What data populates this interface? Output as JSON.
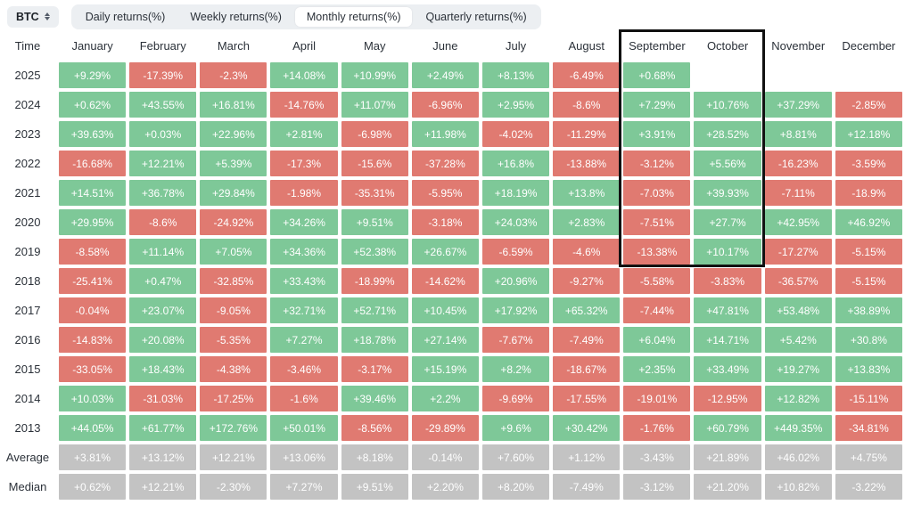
{
  "controls": {
    "symbol": {
      "label": "BTC"
    },
    "tabs": [
      {
        "label": "Daily returns(%)",
        "active": false
      },
      {
        "label": "Weekly returns(%)",
        "active": false
      },
      {
        "label": "Monthly returns(%)",
        "active": true
      },
      {
        "label": "Quarterly returns(%)",
        "active": false
      }
    ]
  },
  "table": {
    "columns": [
      "Time",
      "January",
      "February",
      "March",
      "April",
      "May",
      "June",
      "July",
      "August",
      "September",
      "October",
      "November",
      "December"
    ],
    "rows": [
      {
        "label": "2025",
        "type": "year",
        "cells": [
          "+9.29%",
          "-17.39%",
          "-2.3%",
          "+14.08%",
          "+10.99%",
          "+2.49%",
          "+8.13%",
          "-6.49%",
          "+0.68%",
          "",
          "",
          ""
        ]
      },
      {
        "label": "2024",
        "type": "year",
        "cells": [
          "+0.62%",
          "+43.55%",
          "+16.81%",
          "-14.76%",
          "+11.07%",
          "-6.96%",
          "+2.95%",
          "-8.6%",
          "+7.29%",
          "+10.76%",
          "+37.29%",
          "-2.85%"
        ]
      },
      {
        "label": "2023",
        "type": "year",
        "cells": [
          "+39.63%",
          "+0.03%",
          "+22.96%",
          "+2.81%",
          "-6.98%",
          "+11.98%",
          "-4.02%",
          "-11.29%",
          "+3.91%",
          "+28.52%",
          "+8.81%",
          "+12.18%"
        ]
      },
      {
        "label": "2022",
        "type": "year",
        "cells": [
          "-16.68%",
          "+12.21%",
          "+5.39%",
          "-17.3%",
          "-15.6%",
          "-37.28%",
          "+16.8%",
          "-13.88%",
          "-3.12%",
          "+5.56%",
          "-16.23%",
          "-3.59%"
        ]
      },
      {
        "label": "2021",
        "type": "year",
        "cells": [
          "+14.51%",
          "+36.78%",
          "+29.84%",
          "-1.98%",
          "-35.31%",
          "-5.95%",
          "+18.19%",
          "+13.8%",
          "-7.03%",
          "+39.93%",
          "-7.11%",
          "-18.9%"
        ]
      },
      {
        "label": "2020",
        "type": "year",
        "cells": [
          "+29.95%",
          "-8.6%",
          "-24.92%",
          "+34.26%",
          "+9.51%",
          "-3.18%",
          "+24.03%",
          "+2.83%",
          "-7.51%",
          "+27.7%",
          "+42.95%",
          "+46.92%"
        ]
      },
      {
        "label": "2019",
        "type": "year",
        "cells": [
          "-8.58%",
          "+11.14%",
          "+7.05%",
          "+34.36%",
          "+52.38%",
          "+26.67%",
          "-6.59%",
          "-4.6%",
          "-13.38%",
          "+10.17%",
          "-17.27%",
          "-5.15%"
        ]
      },
      {
        "label": "2018",
        "type": "year",
        "cells": [
          "-25.41%",
          "+0.47%",
          "-32.85%",
          "+33.43%",
          "-18.99%",
          "-14.62%",
          "+20.96%",
          "-9.27%",
          "-5.58%",
          "-3.83%",
          "-36.57%",
          "-5.15%"
        ]
      },
      {
        "label": "2017",
        "type": "year",
        "cells": [
          "-0.04%",
          "+23.07%",
          "-9.05%",
          "+32.71%",
          "+52.71%",
          "+10.45%",
          "+17.92%",
          "+65.32%",
          "-7.44%",
          "+47.81%",
          "+53.48%",
          "+38.89%"
        ]
      },
      {
        "label": "2016",
        "type": "year",
        "cells": [
          "-14.83%",
          "+20.08%",
          "-5.35%",
          "+7.27%",
          "+18.78%",
          "+27.14%",
          "-7.67%",
          "-7.49%",
          "+6.04%",
          "+14.71%",
          "+5.42%",
          "+30.8%"
        ]
      },
      {
        "label": "2015",
        "type": "year",
        "cells": [
          "-33.05%",
          "+18.43%",
          "-4.38%",
          "-3.46%",
          "-3.17%",
          "+15.19%",
          "+8.2%",
          "-18.67%",
          "+2.35%",
          "+33.49%",
          "+19.27%",
          "+13.83%"
        ]
      },
      {
        "label": "2014",
        "type": "year",
        "cells": [
          "+10.03%",
          "-31.03%",
          "-17.25%",
          "-1.6%",
          "+39.46%",
          "+2.2%",
          "-9.69%",
          "-17.55%",
          "-19.01%",
          "-12.95%",
          "+12.82%",
          "-15.11%"
        ]
      },
      {
        "label": "2013",
        "type": "year",
        "cells": [
          "+44.05%",
          "+61.77%",
          "+172.76%",
          "+50.01%",
          "-8.56%",
          "-29.89%",
          "+9.6%",
          "+30.42%",
          "-1.76%",
          "+60.79%",
          "+449.35%",
          "-34.81%"
        ]
      },
      {
        "label": "Average",
        "type": "summary",
        "cells": [
          "+3.81%",
          "+13.12%",
          "+12.21%",
          "+13.06%",
          "+8.18%",
          "-0.14%",
          "+7.60%",
          "+1.12%",
          "-3.43%",
          "+21.89%",
          "+46.02%",
          "+4.75%"
        ]
      },
      {
        "label": "Median",
        "type": "summary",
        "cells": [
          "+0.62%",
          "+12.21%",
          "-2.30%",
          "+7.27%",
          "+9.51%",
          "+2.20%",
          "+8.20%",
          "-7.49%",
          "-3.12%",
          "+21.20%",
          "+10.82%",
          "-3.22%"
        ]
      }
    ]
  },
  "highlight": {
    "from_column": "September",
    "to_column": "October",
    "from_row": "header",
    "to_row": "2019"
  },
  "colors": {
    "positive": "#7ec898",
    "negative": "#e07a71",
    "summary": "#c3c3c3",
    "highlight_border": "#111111"
  }
}
